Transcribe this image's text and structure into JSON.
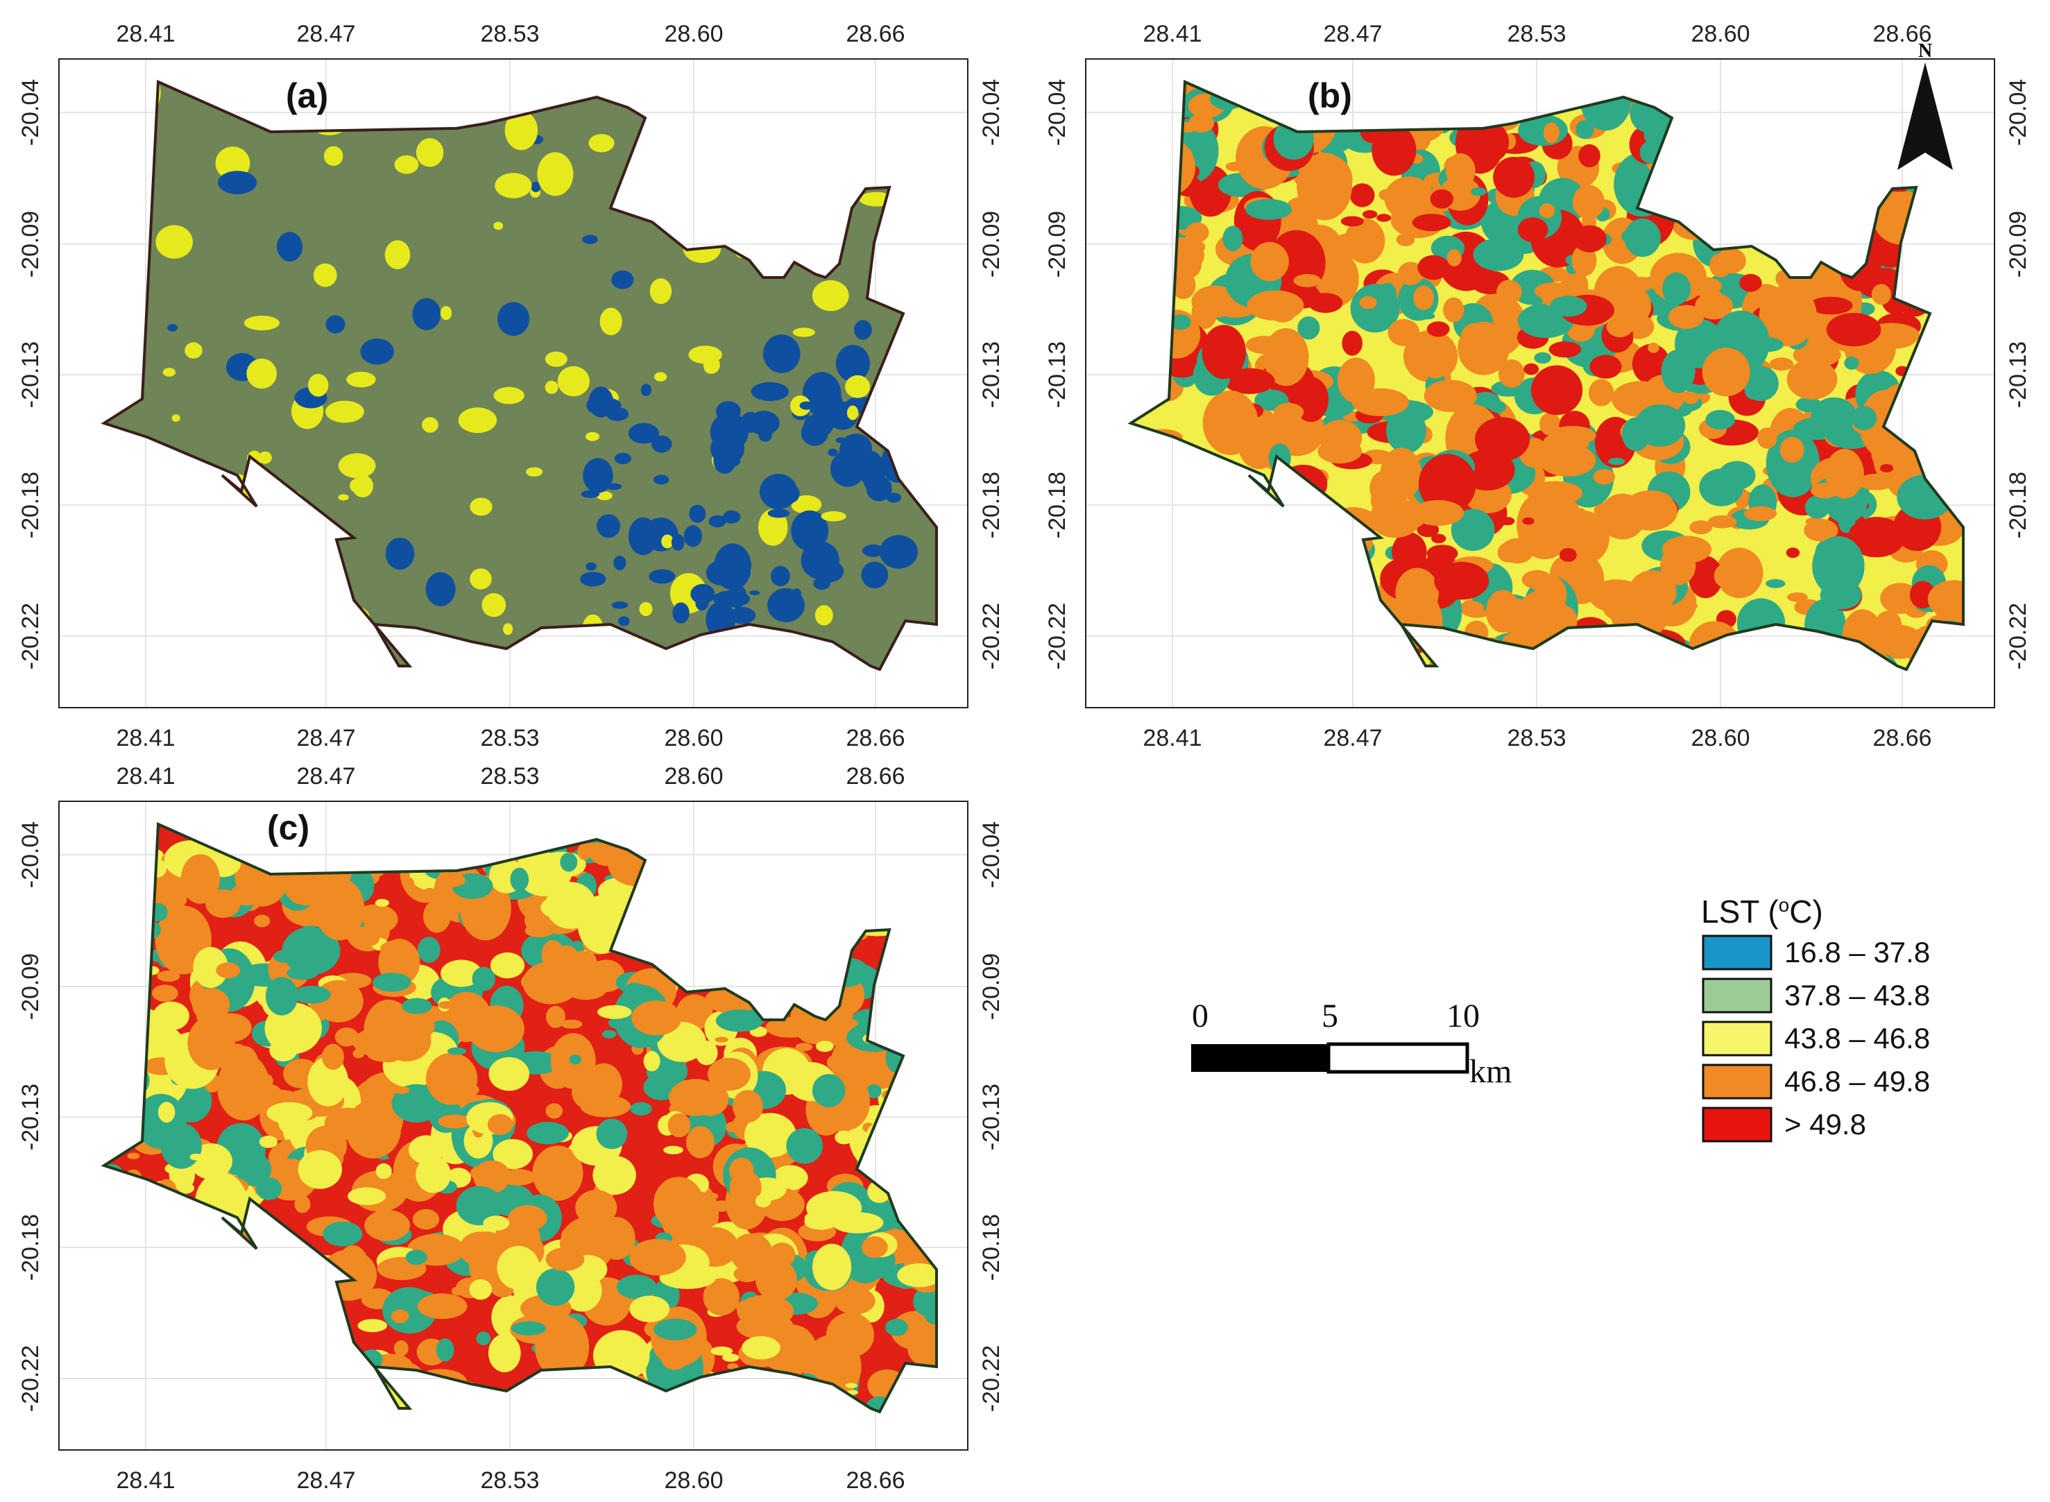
{
  "map_data": {
    "axes": {
      "x_ticks": [
        "28.41",
        "28.47",
        "28.53",
        "28.60",
        "28.66"
      ],
      "y_ticks": [
        "-20.04",
        "-20.09",
        "-20.13",
        "-20.18",
        "-20.22"
      ]
    },
    "panels": [
      {
        "id": "a",
        "label": "(a)",
        "base_color": "#6f8457",
        "boundary_color": "#3a1f1a"
      },
      {
        "id": "b",
        "label": "(b)",
        "base_color": "#f2ee4a",
        "boundary_color": "#1f3a1f"
      },
      {
        "id": "c",
        "label": "(c)",
        "base_color": "#e12016",
        "boundary_color": "#1f3a1f"
      }
    ],
    "north_arrow": {
      "label": "N"
    },
    "scale_bar": {
      "labels": [
        "0",
        "5",
        "10"
      ],
      "unit": "km"
    },
    "legend": {
      "title": "LST (",
      "title_sup": "o",
      "title_tail": "C)",
      "classes": [
        {
          "label": "16.8 – 37.8",
          "color": "#1a95c9"
        },
        {
          "label": "37.8 – 43.8",
          "color": "#9ccc96"
        },
        {
          "label": "43.8 – 46.8",
          "color": "#f7f56a"
        },
        {
          "label": "46.8 – 49.8",
          "color": "#f28a26"
        },
        {
          "label": "> 49.8",
          "color": "#e8140f"
        }
      ]
    },
    "patch_colors": {
      "a": [
        "#0f4fa0",
        "#e6ea1c"
      ],
      "b": [
        "#f08a22",
        "#de1a12",
        "#2eaa86",
        "#f08a22"
      ],
      "c": [
        "#f08a22",
        "#f08a22",
        "#f2ee4a",
        "#2eaa86"
      ]
    }
  }
}
